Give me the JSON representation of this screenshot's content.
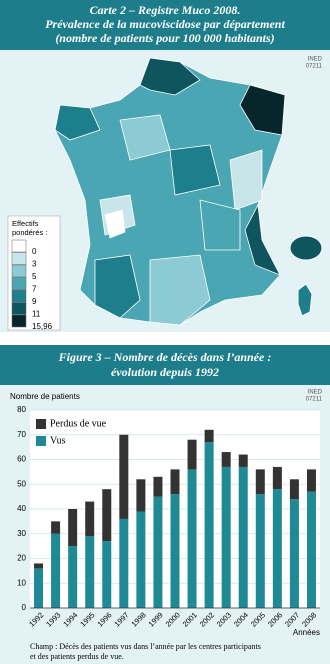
{
  "map": {
    "title": [
      "Carte 2 – Registre Muco 2008.",
      "Prévalence de la mucoviscidose par département",
      "(nombre de patients pour 100 000 habitants)"
    ],
    "source": [
      "INED",
      "07211"
    ],
    "legend": {
      "title": [
        "Effectifs",
        "pondérés :"
      ],
      "labels": [
        "0",
        "3",
        "5",
        "7",
        "9",
        "11",
        "15,96"
      ],
      "colors": [
        "#ffffff",
        "#c8e6ea",
        "#8ccbd3",
        "#4aa6b2",
        "#1e7f8c",
        "#0e5560",
        "#06262b"
      ]
    }
  },
  "chart_data": {
    "type": "stacked-bar",
    "title": [
      "Figure 3 – Nombre de décès dans l’année :",
      "évolution depuis 1992"
    ],
    "source": [
      "INED",
      "07211"
    ],
    "y_label": "Nombre de patients",
    "x_label": "Années",
    "note": [
      "Champ : Décès des patients vus dans l’année par les centres participants",
      "et des patients perdus de vue."
    ],
    "categories": [
      "1992",
      "1993",
      "1994",
      "1995",
      "1996",
      "1997",
      "1998",
      "1999",
      "2000",
      "2001",
      "2002",
      "2003",
      "2004",
      "2005",
      "2006",
      "2007",
      "2008"
    ],
    "series": [
      {
        "name": "Vus",
        "color": "#1f8a96",
        "values": [
          16,
          30,
          25,
          29,
          27,
          36,
          39,
          45,
          46,
          56,
          67,
          57,
          57,
          46,
          48,
          44,
          47
        ]
      },
      {
        "name": "Perdus de vue",
        "color": "#333333",
        "values": [
          2,
          5,
          15,
          14,
          21,
          34,
          13,
          8,
          10,
          12,
          5,
          6,
          5,
          10,
          9,
          8,
          9
        ]
      }
    ],
    "ylim": [
      0,
      80
    ],
    "yticks": [
      0,
      10,
      20,
      30,
      40,
      50,
      60,
      70,
      80
    ],
    "grid": true
  }
}
